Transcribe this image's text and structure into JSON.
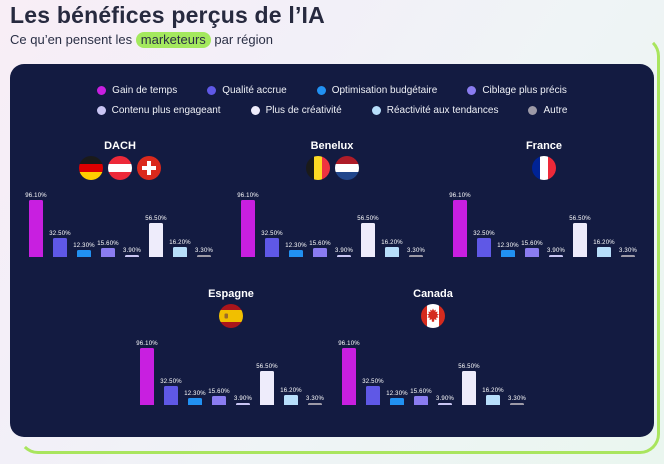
{
  "header": {
    "title": "Les bénéfices perçus de l’IA",
    "subtitle_prefix": "Ce qu’en pensent les ",
    "subtitle_highlight": "marketeurs",
    "subtitle_suffix": " par région",
    "highlight_color": "#a4e95e"
  },
  "panel": {
    "background": "#131b41"
  },
  "chart_data": {
    "type": "bar",
    "title": "Les bénéfices perçus de l’IA",
    "subtitle": "Ce qu’en pensent les marketeurs par région",
    "categories": [
      "Gain de temps",
      "Qualité accrue",
      "Optimisation budgétaire",
      "Ciblage plus précis",
      "Contenu plus engageant",
      "Plus de créativité",
      "Réactivité aux tendances",
      "Autre"
    ],
    "colors": [
      "#c81fe0",
      "#5f58e6",
      "#2191f2",
      "#8a7cf0",
      "#c9c5f3",
      "#eeecfb",
      "#b7defa",
      "#9d9aa7"
    ],
    "value_labels": [
      "96.10%",
      "32.50%",
      "12.30%",
      "15.60%",
      "3.90%",
      "56.50%",
      "16.20%",
      "3.30%"
    ],
    "ylim": [
      0,
      100
    ],
    "grid": false,
    "legend_position": "top",
    "series": [
      {
        "name": "DACH",
        "flags": [
          "germany",
          "austria",
          "switzerland"
        ],
        "values": [
          96.1,
          32.5,
          12.3,
          15.6,
          3.9,
          56.5,
          16.2,
          3.3
        ]
      },
      {
        "name": "Benelux",
        "flags": [
          "belgium",
          "netherlands"
        ],
        "values": [
          96.1,
          32.5,
          12.3,
          15.6,
          3.9,
          56.5,
          16.2,
          3.3
        ]
      },
      {
        "name": "France",
        "flags": [
          "france"
        ],
        "values": [
          96.1,
          32.5,
          12.3,
          15.6,
          3.9,
          56.5,
          16.2,
          3.3
        ]
      },
      {
        "name": "Espagne",
        "flags": [
          "spain"
        ],
        "values": [
          96.1,
          32.5,
          12.3,
          15.6,
          3.9,
          56.5,
          16.2,
          3.3
        ]
      },
      {
        "name": "Canada",
        "flags": [
          "canada"
        ],
        "values": [
          96.1,
          32.5,
          12.3,
          15.6,
          3.9,
          56.5,
          16.2,
          3.3
        ]
      }
    ]
  }
}
